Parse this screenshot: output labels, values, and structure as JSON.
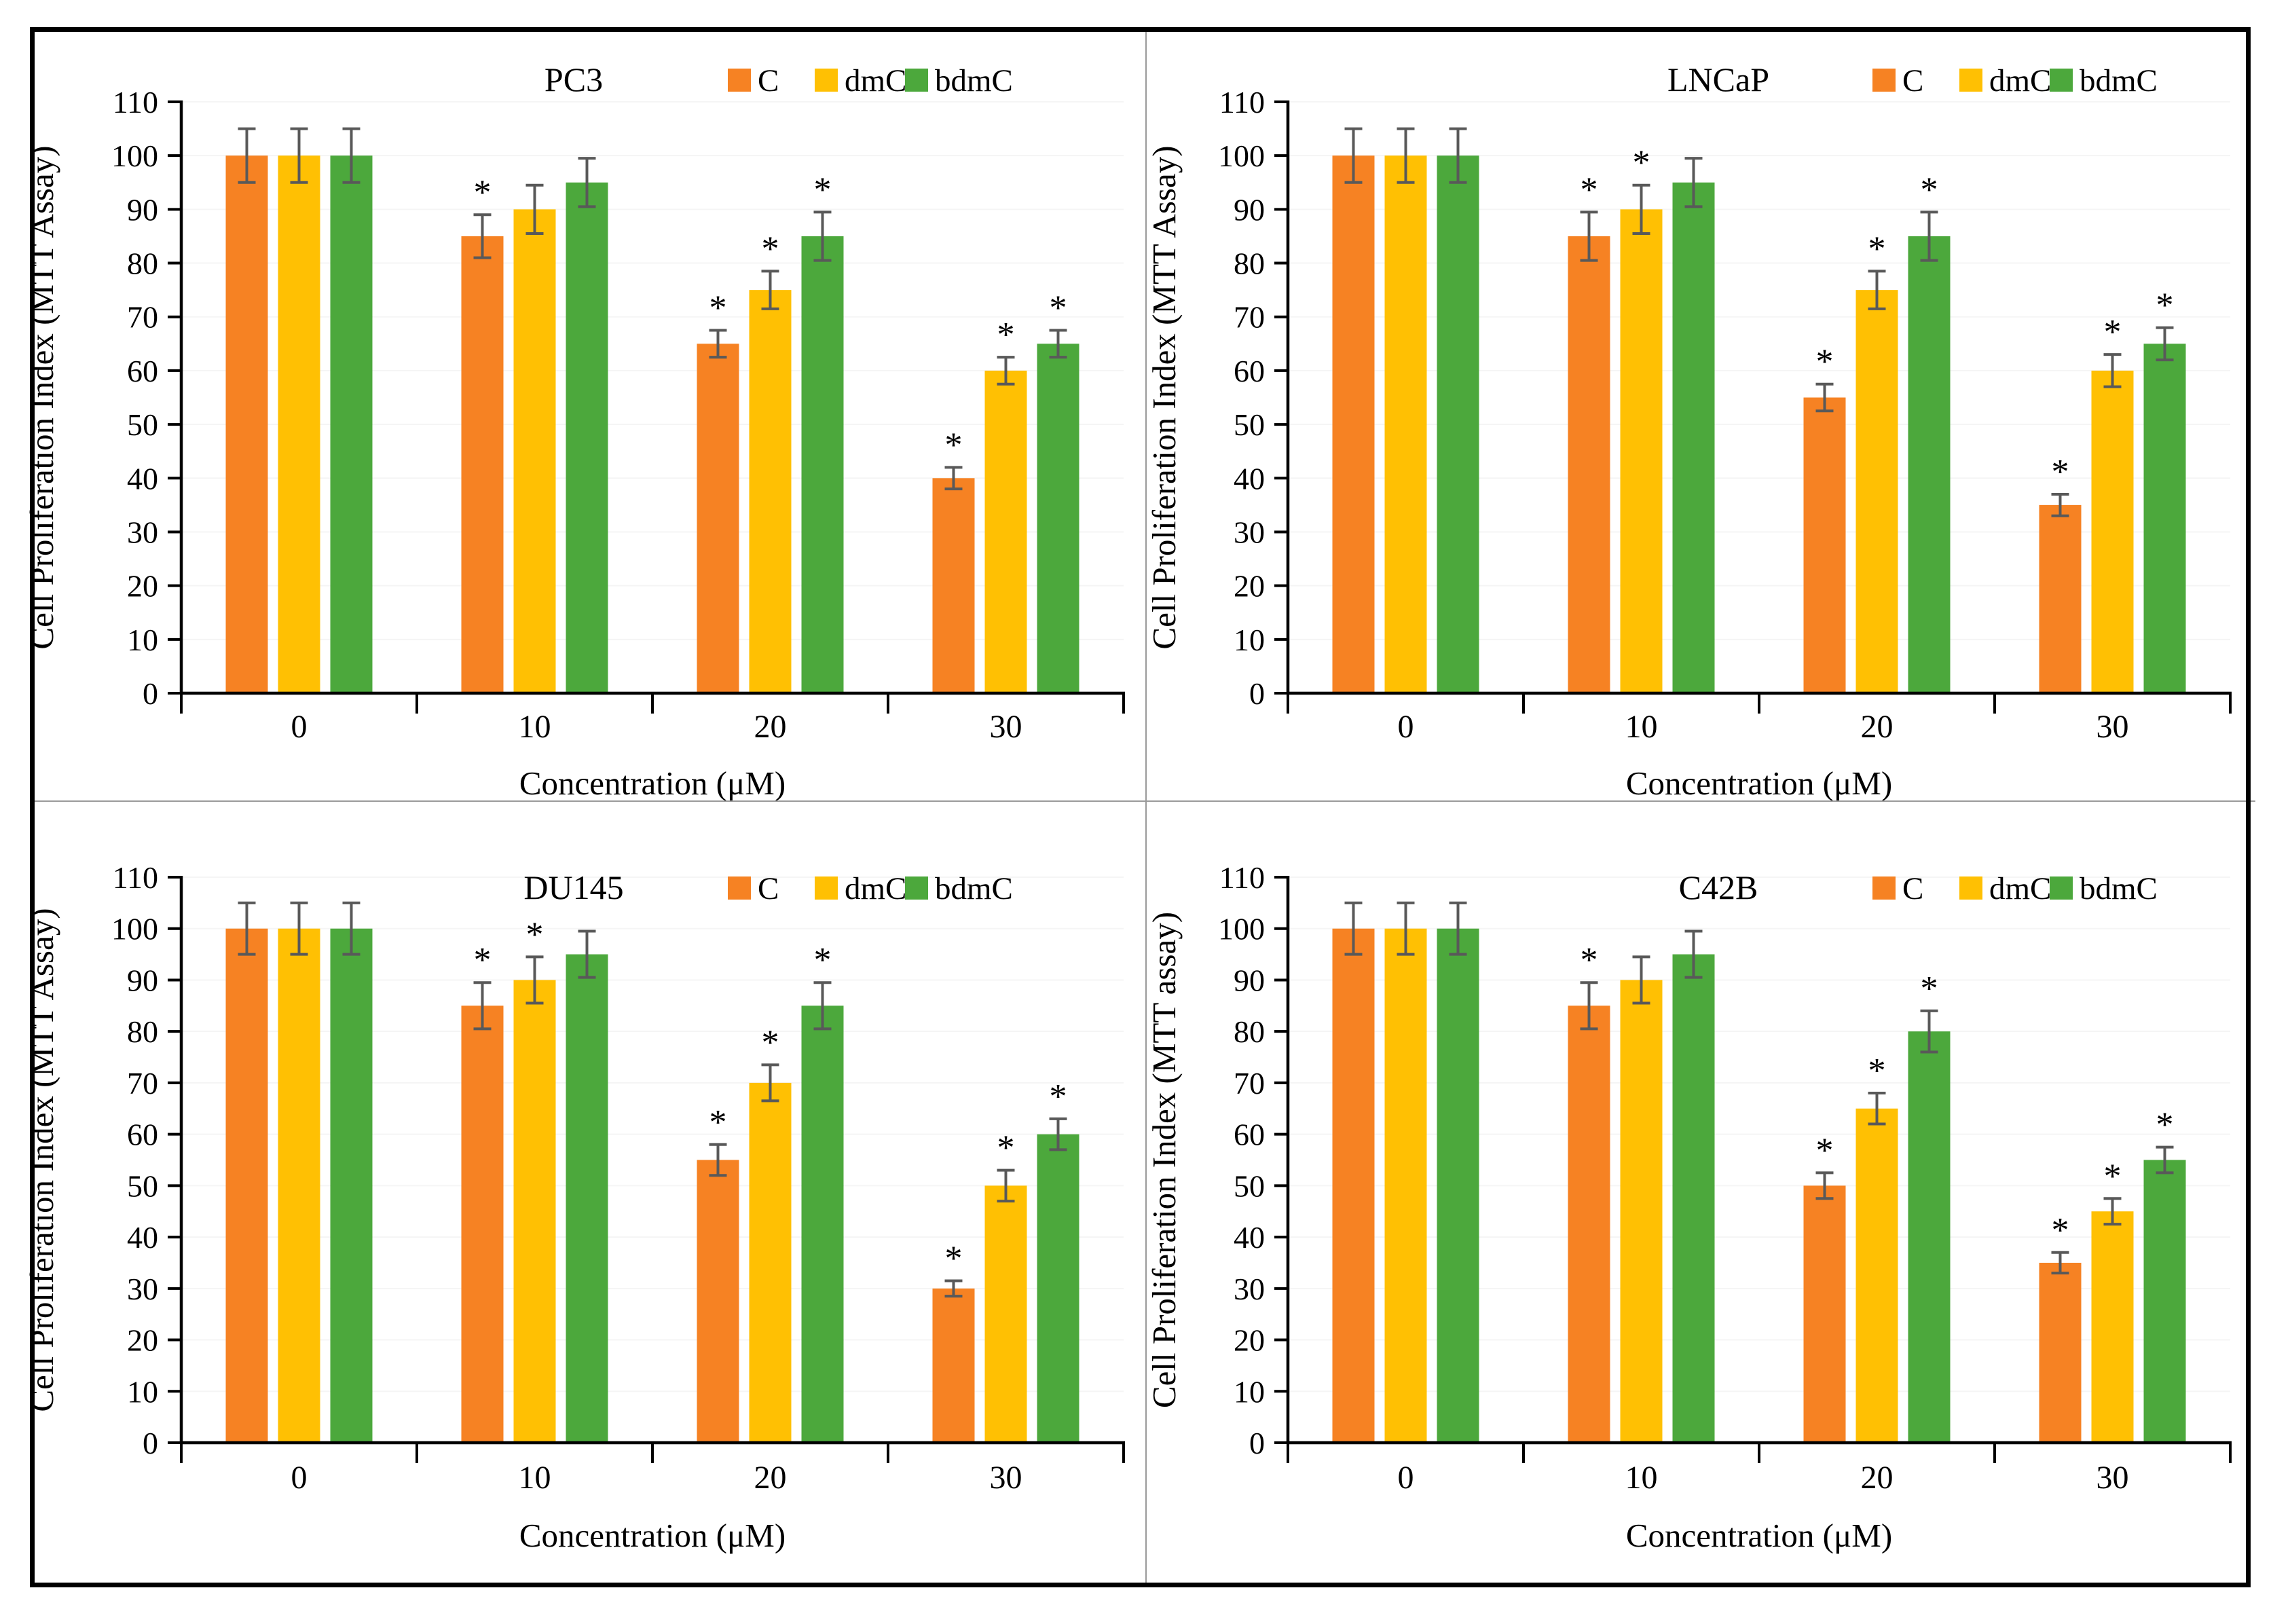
{
  "figure": {
    "legend": [
      "C",
      "dmC",
      "bdmC"
    ],
    "annotation_symbol": "*",
    "colors": {
      "C": "#F68223",
      "dmC": "#FFC003",
      "bdmC": "#4CA83C",
      "error_bar": "#595959",
      "gridline": "#f5f5f5",
      "axis": "#000000",
      "divider": "#9a9a9a"
    }
  },
  "chart_data": [
    {
      "type": "bar",
      "title": "PC3",
      "xlabel": "Concentration (μM)",
      "ylabel": "Cell Proliferation Index (MTT Assay)",
      "categories": [
        "0",
        "10",
        "20",
        "30"
      ],
      "ylim": [
        0,
        110
      ],
      "ytick_step": 10,
      "grid": "faint-horizontal",
      "legend_position": "top-right-inside",
      "annotation_symbol": "*",
      "series": [
        {
          "name": "C",
          "color": "#F68223",
          "values": [
            100,
            85,
            65,
            40
          ],
          "errors": [
            5,
            4,
            2.5,
            2
          ],
          "significant": [
            false,
            true,
            true,
            true
          ]
        },
        {
          "name": "dmC",
          "color": "#FFC003",
          "values": [
            100,
            90,
            75,
            60
          ],
          "errors": [
            5,
            4.5,
            3.5,
            2.5
          ],
          "significant": [
            false,
            false,
            true,
            true
          ]
        },
        {
          "name": "bdmC",
          "color": "#4CA83C",
          "values": [
            100,
            95,
            85,
            65
          ],
          "errors": [
            5,
            4.5,
            4.5,
            2.5
          ],
          "significant": [
            false,
            false,
            true,
            true
          ]
        }
      ]
    },
    {
      "type": "bar",
      "title": "LNCaP",
      "xlabel": "Concentration (μM)",
      "ylabel": "Cell Proliferation Index (MTT Assay)",
      "categories": [
        "0",
        "10",
        "20",
        "30"
      ],
      "ylim": [
        0,
        110
      ],
      "ytick_step": 10,
      "grid": "faint-horizontal",
      "legend_position": "top-right-inside",
      "annotation_symbol": "*",
      "series": [
        {
          "name": "C",
          "color": "#F68223",
          "values": [
            100,
            85,
            55,
            35
          ],
          "errors": [
            5,
            4.5,
            2.5,
            2
          ],
          "significant": [
            false,
            true,
            true,
            true
          ]
        },
        {
          "name": "dmC",
          "color": "#FFC003",
          "values": [
            100,
            90,
            75,
            60
          ],
          "errors": [
            5,
            4.5,
            3.5,
            3
          ],
          "significant": [
            false,
            true,
            true,
            true
          ]
        },
        {
          "name": "bdmC",
          "color": "#4CA83C",
          "values": [
            100,
            95,
            85,
            65
          ],
          "errors": [
            5,
            4.5,
            4.5,
            3
          ],
          "significant": [
            false,
            false,
            true,
            true
          ]
        }
      ]
    },
    {
      "type": "bar",
      "title": "DU145",
      "xlabel": "Concentration (μM)",
      "ylabel": "Cell Proliferation Index (MTT Assay)",
      "categories": [
        "0",
        "10",
        "20",
        "30"
      ],
      "ylim": [
        0,
        110
      ],
      "ytick_step": 10,
      "grid": "faint-horizontal",
      "legend_position": "top-right-inside",
      "annotation_symbol": "*",
      "series": [
        {
          "name": "C",
          "color": "#F68223",
          "values": [
            100,
            85,
            55,
            30
          ],
          "errors": [
            5,
            4.5,
            3,
            1.5
          ],
          "significant": [
            false,
            true,
            true,
            true
          ]
        },
        {
          "name": "dmC",
          "color": "#FFC003",
          "values": [
            100,
            90,
            70,
            50
          ],
          "errors": [
            5,
            4.5,
            3.5,
            3
          ],
          "significant": [
            false,
            true,
            true,
            true
          ]
        },
        {
          "name": "bdmC",
          "color": "#4CA83C",
          "values": [
            100,
            95,
            85,
            60
          ],
          "errors": [
            5,
            4.5,
            4.5,
            3
          ],
          "significant": [
            false,
            false,
            true,
            true
          ]
        }
      ]
    },
    {
      "type": "bar",
      "title": "C42B",
      "xlabel": "Concentration (μM)",
      "ylabel": "Cell Proliferation Index (MTT assay)",
      "categories": [
        "0",
        "10",
        "20",
        "30"
      ],
      "ylim": [
        0,
        110
      ],
      "ytick_step": 10,
      "grid": "faint-horizontal",
      "legend_position": "top-right-inside",
      "annotation_symbol": "*",
      "series": [
        {
          "name": "C",
          "color": "#F68223",
          "values": [
            100,
            85,
            50,
            35
          ],
          "errors": [
            5,
            4.5,
            2.5,
            2
          ],
          "significant": [
            false,
            true,
            true,
            true
          ]
        },
        {
          "name": "dmC",
          "color": "#FFC003",
          "values": [
            100,
            90,
            65,
            45
          ],
          "errors": [
            5,
            4.5,
            3,
            2.5
          ],
          "significant": [
            false,
            false,
            true,
            true
          ]
        },
        {
          "name": "bdmC",
          "color": "#4CA83C",
          "values": [
            100,
            95,
            80,
            55
          ],
          "errors": [
            5,
            4.5,
            4,
            2.5
          ],
          "significant": [
            false,
            false,
            true,
            true
          ]
        }
      ]
    }
  ]
}
